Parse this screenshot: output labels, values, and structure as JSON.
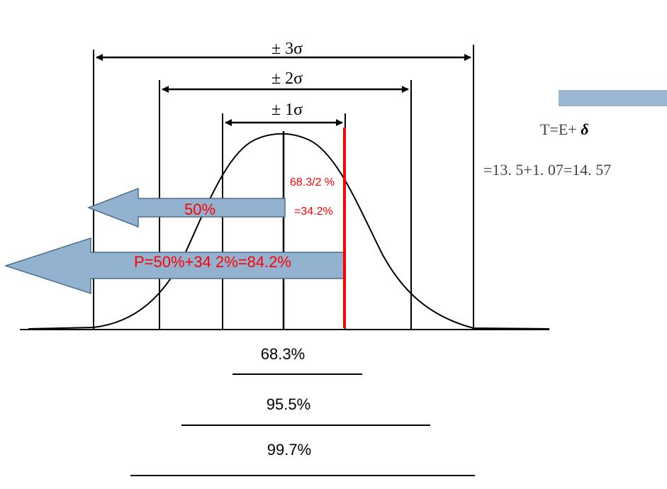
{
  "sigma_labels": {
    "three": "± 3σ",
    "two": "± 2σ",
    "one": "± 1σ"
  },
  "arrows": {
    "half": "50%",
    "total": "P=50%+34 2%=84.2%"
  },
  "red_note": {
    "line1": "68.3/2 %",
    "line2": "=34.2%"
  },
  "coverage": {
    "one_sigma": "68.3%",
    "two_sigma": "95.5%",
    "three_sigma": "99.7%"
  },
  "formula": {
    "line1_prefix": "T=E+",
    "line1_symbol": "δ",
    "line2": "=13. 5+1. 07=14. 57"
  },
  "colors": {
    "arrow_fill": "#93B2CF",
    "arrow_stroke": "#4A6E8E",
    "accent_red": "#FF0000",
    "bar_blue": "#9AB6D2",
    "text_black": "#000000",
    "formula_gray": "#444444"
  }
}
